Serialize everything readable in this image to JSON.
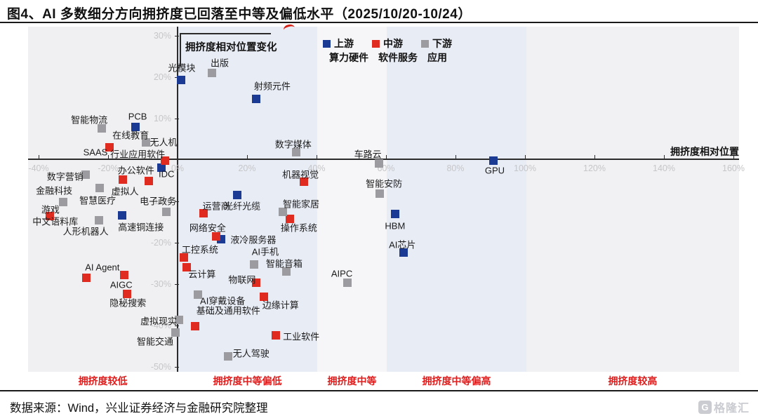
{
  "title": "图4、AI 多数细分方向拥挤度已回落至中等及偏低水平（2025/10/20-10/24）",
  "source_line": "数据来源：Wind，兴业证券经济与金融研究院整理",
  "logo_text": "格隆汇",
  "chart_data": {
    "type": "scatter",
    "xlabel": "拥挤度相对位置",
    "ylabel": "拥挤度相对位置变化",
    "xlim": [
      -43,
      162
    ],
    "ylim": [
      -52,
      32
    ],
    "x_ticks": [
      -40,
      -20,
      0,
      20,
      40,
      60,
      80,
      100,
      120,
      140,
      160
    ],
    "y_ticks": [
      30,
      20,
      10,
      -10,
      -20,
      -30,
      -40,
      -50
    ],
    "tick_color": "#c6c6c9",
    "zone_label_color": "#e01d1d",
    "legend": [
      {
        "line1": "上游",
        "line2": "算力硬件",
        "color": "#1b3a94"
      },
      {
        "line1": "中游",
        "line2": "软件服务",
        "color": "#e02b20"
      },
      {
        "line1": "下游",
        "line2": "应用",
        "color": "#9c9ca0"
      }
    ],
    "zones": [
      {
        "label": "拥挤度较低",
        "from": -43,
        "to": 0,
        "color": "#f0f0f2"
      },
      {
        "label": "拥挤度中等偏低",
        "from": 0,
        "to": 40.2,
        "color": "#e8ecf5"
      },
      {
        "label": "拥挤度中等",
        "from": 40.2,
        "to": 60.2,
        "color": "#f6f6f8"
      },
      {
        "label": "拥挤度中等偏高",
        "from": 60.2,
        "to": 100.4,
        "color": "#e8ecf5"
      },
      {
        "label": "拥挤度较高",
        "from": 100.4,
        "to": 161.6,
        "color": "#f1f1f3"
      }
    ],
    "series": [
      {
        "name": "上游算力硬件",
        "color": "#1b3a94",
        "points": [
          {
            "label": "光模块",
            "x": 1.0,
            "y": 19.3,
            "dx": 1,
            "dy": -18
          },
          {
            "label": "射频元件",
            "x": 22.6,
            "y": 14.7,
            "dx": 23,
            "dy": -19
          },
          {
            "label": "PCB",
            "x": -12.1,
            "y": 7.8,
            "dx": 3,
            "dy": -15
          },
          {
            "label": "IDC",
            "x": -4.6,
            "y": -1.9,
            "dx": 7,
            "dy": 9
          },
          {
            "label": "高速铜连接",
            "x": -16.0,
            "y": -13.4,
            "dx": 27,
            "dy": 16
          },
          {
            "label": "光纤光缆",
            "x": 17.2,
            "y": -8.6,
            "dx": 7,
            "dy": 15
          },
          {
            "label": "液冷服务器",
            "x": 12.5,
            "y": -19.3,
            "dx": 46,
            "dy": 0
          },
          {
            "label": "HBM",
            "x": 62.6,
            "y": -13.2,
            "dx": 0,
            "dy": 17
          },
          {
            "label": "GPU",
            "x": 90.9,
            "y": -0.3,
            "dx": 2,
            "dy": 14
          },
          {
            "label": "AI芯片",
            "x": 65.1,
            "y": -22.5,
            "dx": -2,
            "dy": -12
          }
        ]
      },
      {
        "name": "中游软件服务",
        "color": "#e02b20",
        "points": [
          {
            "label": "SAAS",
            "x": -19.6,
            "y": 2.9,
            "dx": -20,
            "dy": 7
          },
          {
            "label": "行业应用软件",
            "x": -3.6,
            "y": -0.3,
            "dx": -39,
            "dy": -10
          },
          {
            "label": "办公软件",
            "x": -15.8,
            "y": -4.9,
            "dx": 19,
            "dy": -14
          },
          {
            "label": "",
            "x": -8.3,
            "y": -5.1,
            "dx": 0,
            "dy": 0
          },
          {
            "label": "游戏",
            "x": -36.8,
            "y": -13.7,
            "dx": 1,
            "dy": -10
          },
          {
            "label": "中文语料库",
            "x": -35.2,
            "y": -14.9,
            "dx": 0,
            "dy": 0,
            "no_marker": true
          },
          {
            "label": "运营商",
            "x": 7.5,
            "y": -12.9,
            "dx": 18,
            "dy": -11
          },
          {
            "label": "网络安全",
            "x": 11.1,
            "y": -18.5,
            "dx": -12,
            "dy": -13
          },
          {
            "label": "操作系统",
            "x": 32.3,
            "y": -14.4,
            "dx": 13,
            "dy": 12
          },
          {
            "label": "机器视觉",
            "x": 36.4,
            "y": -5.3,
            "dx": -5,
            "dy": -11
          },
          {
            "label": "工控系统",
            "x": 1.8,
            "y": -23.7,
            "dx": 23,
            "dy": -12
          },
          {
            "label": "云计算",
            "x": 2.6,
            "y": -26.1,
            "dx": 22,
            "dy": 9
          },
          {
            "label": "物联网",
            "x": 22.6,
            "y": -29.8,
            "dx": -20,
            "dy": -5
          },
          {
            "label": "边缘计算",
            "x": 24.8,
            "y": -33.1,
            "dx": 24,
            "dy": 11
          },
          {
            "label": "基础及通用软件",
            "x": 5.1,
            "y": -40.3,
            "dx": 47,
            "dy": -23
          },
          {
            "label": "工业软件",
            "x": 28.3,
            "y": -42.4,
            "dx": 36,
            "dy": 1
          },
          {
            "label": "AI Agent",
            "x": -26.3,
            "y": -28.6,
            "dx": 23,
            "dy": -15
          },
          {
            "label": "AIGC",
            "x": -15.4,
            "y": -27.8,
            "dx": -4,
            "dy": 14
          },
          {
            "label": "隐秘搜索",
            "x": -14.5,
            "y": -32.4,
            "dx": 1,
            "dy": 12
          }
        ]
      },
      {
        "name": "下游应用",
        "color": "#9c9ca0",
        "points": [
          {
            "label": "出版",
            "x": 9.9,
            "y": 21.0,
            "dx": 11,
            "dy": -15
          },
          {
            "label": "智能物流",
            "x": -21.8,
            "y": 7.5,
            "dx": -18,
            "dy": -13
          },
          {
            "label": "无人机",
            "x": -9.1,
            "y": 4.1,
            "dx": 25,
            "dy": -1
          },
          {
            "label": "在线教育",
            "x": -13.5,
            "y": 6.1,
            "dx": 0,
            "dy": 0,
            "no_marker": true
          },
          {
            "label": "智慧医疗",
            "x": -23.0,
            "y": -9.8,
            "dx": 0,
            "dy": 0,
            "no_marker": true
          },
          {
            "label": "数字营销",
            "x": -26.5,
            "y": -3.6,
            "dx": -29,
            "dy": 2
          },
          {
            "label": "金融科技",
            "x": -32.9,
            "y": -10.2,
            "dx": -13,
            "dy": -17
          },
          {
            "label": "虚拟人",
            "x": -22.4,
            "y": -6.9,
            "dx": 36,
            "dy": 4
          },
          {
            "label": "电子政务",
            "x": -3.2,
            "y": -12.7,
            "dx": -12,
            "dy": -16
          },
          {
            "label": "人形机器人",
            "x": -22.6,
            "y": -14.6,
            "dx": -19,
            "dy": 15
          },
          {
            "label": "数字媒体",
            "x": 34.1,
            "y": 1.7,
            "dx": -4,
            "dy": -12
          },
          {
            "label": "车路云",
            "x": 58.0,
            "y": -1.0,
            "dx": -16,
            "dy": -14
          },
          {
            "label": "智能安防",
            "x": 58.2,
            "y": -8.3,
            "dx": 6,
            "dy": -15
          },
          {
            "label": "智能家居",
            "x": 30.3,
            "y": -12.7,
            "dx": 26,
            "dy": -12
          },
          {
            "label": "AI手机",
            "x": 22.0,
            "y": -25.4,
            "dx": 16,
            "dy": -19
          },
          {
            "label": "智能音箱",
            "x": 31.3,
            "y": -27.1,
            "dx": -3,
            "dy": -12
          },
          {
            "label": "AIPC",
            "x": 48.9,
            "y": -29.8,
            "dx": -8,
            "dy": -13
          },
          {
            "label": "AI穿戴设备",
            "x": 5.9,
            "y": -32.7,
            "dx": 35,
            "dy": 8
          },
          {
            "label": "虚拟现实",
            "x": 0.4,
            "y": -38.8,
            "dx": -29,
            "dy": 1
          },
          {
            "label": "智能交通",
            "x": -0.6,
            "y": -41.7,
            "dx": -29,
            "dy": 12
          },
          {
            "label": "无人驾驶",
            "x": 14.5,
            "y": -47.5,
            "dx": 33,
            "dy": -5
          }
        ]
      }
    ]
  }
}
